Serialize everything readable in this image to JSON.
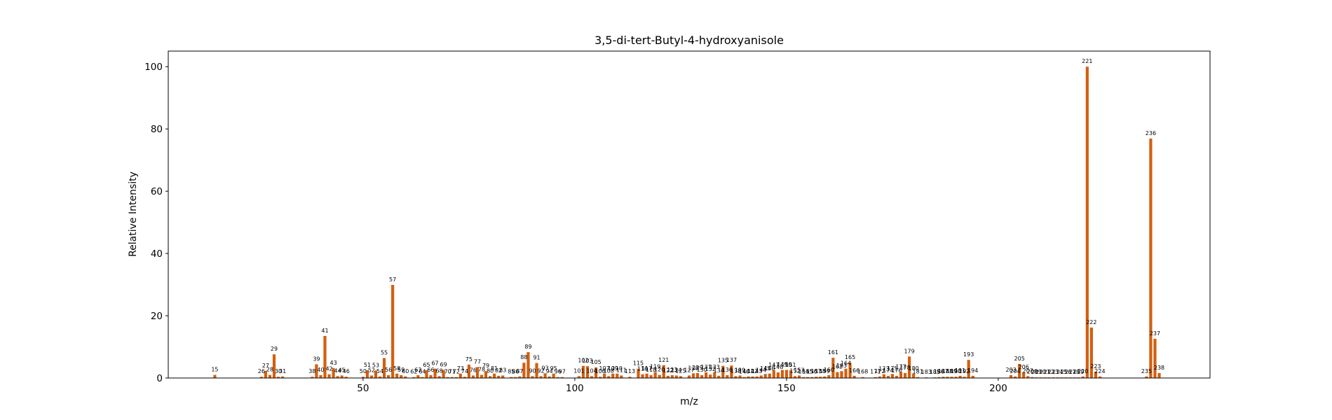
{
  "chart_data": {
    "type": "bar",
    "title": "3,5-di-tert-Butyl-4-hydroxyanisole",
    "xlabel": "m/z",
    "ylabel": "Relative Intensity",
    "xlim": [
      4,
      250
    ],
    "ylim": [
      0,
      105
    ],
    "xticks": [
      50,
      100,
      150,
      200
    ],
    "yticks": [
      0,
      20,
      40,
      60,
      80,
      100
    ],
    "grid": false,
    "bar_color": "#d35f0f",
    "peaks": [
      [
        15,
        1.0
      ],
      [
        26,
        0.4
      ],
      [
        27,
        2.3
      ],
      [
        28,
        1.0
      ],
      [
        29,
        7.6
      ],
      [
        30,
        0.4
      ],
      [
        31,
        0.5
      ],
      [
        38,
        0.4
      ],
      [
        39,
        4.4
      ],
      [
        40,
        0.9
      ],
      [
        41,
        13.5
      ],
      [
        42,
        1.2
      ],
      [
        43,
        3.2
      ],
      [
        44,
        0.6
      ],
      [
        45,
        0.8
      ],
      [
        46,
        0.4
      ],
      [
        50,
        0.4
      ],
      [
        51,
        2.5
      ],
      [
        52,
        0.8
      ],
      [
        53,
        2.4
      ],
      [
        54,
        0.5
      ],
      [
        55,
        6.4
      ],
      [
        56,
        0.9
      ],
      [
        57,
        29.9
      ],
      [
        58,
        1.4
      ],
      [
        59,
        0.9
      ],
      [
        60,
        0.5
      ],
      [
        62,
        0.3
      ],
      [
        63,
        0.9
      ],
      [
        64,
        0.3
      ],
      [
        65,
        2.5
      ],
      [
        66,
        0.9
      ],
      [
        67,
        3.0
      ],
      [
        68,
        0.6
      ],
      [
        69,
        2.6
      ],
      [
        70,
        0.3
      ],
      [
        71,
        0.3
      ],
      [
        72,
        0.3
      ],
      [
        73,
        1.4
      ],
      [
        74,
        0.4
      ],
      [
        75,
        4.3
      ],
      [
        76,
        0.8
      ],
      [
        77,
        3.5
      ],
      [
        78,
        1.0
      ],
      [
        79,
        2.2
      ],
      [
        80,
        0.6
      ],
      [
        81,
        1.4
      ],
      [
        82,
        0.7
      ],
      [
        83,
        0.8
      ],
      [
        85,
        0.3
      ],
      [
        86,
        0.3
      ],
      [
        87,
        0.5
      ],
      [
        88,
        4.9
      ],
      [
        89,
        8.3
      ],
      [
        90,
        0.6
      ],
      [
        91,
        4.8
      ],
      [
        92,
        0.6
      ],
      [
        93,
        1.5
      ],
      [
        94,
        0.5
      ],
      [
        95,
        1.4
      ],
      [
        96,
        0.3
      ],
      [
        97,
        0.3
      ],
      [
        101,
        0.6
      ],
      [
        102,
        3.9
      ],
      [
        103,
        3.8
      ],
      [
        104,
        0.6
      ],
      [
        105,
        3.4
      ],
      [
        106,
        0.4
      ],
      [
        107,
        1.4
      ],
      [
        108,
        0.6
      ],
      [
        109,
        1.4
      ],
      [
        110,
        1.4
      ],
      [
        111,
        0.8
      ],
      [
        113,
        0.4
      ],
      [
        115,
        3.0
      ],
      [
        116,
        1.2
      ],
      [
        117,
        1.4
      ],
      [
        118,
        0.9
      ],
      [
        119,
        1.9
      ],
      [
        120,
        1.0
      ],
      [
        121,
        4.1
      ],
      [
        122,
        0.7
      ],
      [
        123,
        0.9
      ],
      [
        124,
        0.8
      ],
      [
        125,
        0.6
      ],
      [
        127,
        0.8
      ],
      [
        128,
        1.5
      ],
      [
        129,
        1.6
      ],
      [
        130,
        0.9
      ],
      [
        131,
        1.8
      ],
      [
        132,
        1.1
      ],
      [
        133,
        1.8
      ],
      [
        134,
        0.7
      ],
      [
        135,
        3.9
      ],
      [
        136,
        0.9
      ],
      [
        137,
        4.0
      ],
      [
        138,
        0.6
      ],
      [
        139,
        0.8
      ],
      [
        140,
        0.3
      ],
      [
        141,
        0.5
      ],
      [
        142,
        0.5
      ],
      [
        143,
        0.5
      ],
      [
        144,
        0.8
      ],
      [
        145,
        1.3
      ],
      [
        146,
        1.4
      ],
      [
        147,
        2.5
      ],
      [
        148,
        1.8
      ],
      [
        149,
        2.6
      ],
      [
        150,
        2.6
      ],
      [
        151,
        2.5
      ],
      [
        152,
        0.6
      ],
      [
        153,
        0.8
      ],
      [
        154,
        0.3
      ],
      [
        155,
        0.3
      ],
      [
        156,
        0.3
      ],
      [
        157,
        0.4
      ],
      [
        158,
        0.4
      ],
      [
        159,
        0.5
      ],
      [
        160,
        0.9
      ],
      [
        161,
        6.5
      ],
      [
        162,
        1.9
      ],
      [
        163,
        2.2
      ],
      [
        164,
        3.0
      ],
      [
        165,
        4.9
      ],
      [
        166,
        0.7
      ],
      [
        168,
        0.3
      ],
      [
        171,
        0.3
      ],
      [
        172,
        0.5
      ],
      [
        173,
        1.2
      ],
      [
        174,
        0.7
      ],
      [
        175,
        1.3
      ],
      [
        176,
        0.7
      ],
      [
        177,
        1.9
      ],
      [
        178,
        1.6
      ],
      [
        179,
        6.9
      ],
      [
        180,
        1.4
      ],
      [
        181,
        0.3
      ],
      [
        183,
        0.2
      ],
      [
        185,
        0.2
      ],
      [
        186,
        0.3
      ],
      [
        187,
        0.4
      ],
      [
        188,
        0.4
      ],
      [
        189,
        0.4
      ],
      [
        190,
        0.4
      ],
      [
        191,
        0.7
      ],
      [
        192,
        0.4
      ],
      [
        193,
        5.8
      ],
      [
        194,
        0.7
      ],
      [
        203,
        0.9
      ],
      [
        204,
        0.5
      ],
      [
        205,
        4.5
      ],
      [
        206,
        1.8
      ],
      [
        207,
        0.6
      ],
      [
        208,
        0.3
      ],
      [
        209,
        0.2
      ],
      [
        210,
        0.2
      ],
      [
        211,
        0.2
      ],
      [
        212,
        0.2
      ],
      [
        213,
        0.2
      ],
      [
        214,
        0.2
      ],
      [
        215,
        0.2
      ],
      [
        216,
        0.2
      ],
      [
        217,
        0.2
      ],
      [
        218,
        0.2
      ],
      [
        219,
        0.2
      ],
      [
        220,
        0.5
      ],
      [
        221,
        100.0
      ],
      [
        222,
        16.2
      ],
      [
        223,
        2.0
      ],
      [
        224,
        0.5
      ],
      [
        235,
        0.5
      ],
      [
        236,
        76.9
      ],
      [
        237,
        12.6
      ],
      [
        238,
        1.6
      ]
    ]
  }
}
